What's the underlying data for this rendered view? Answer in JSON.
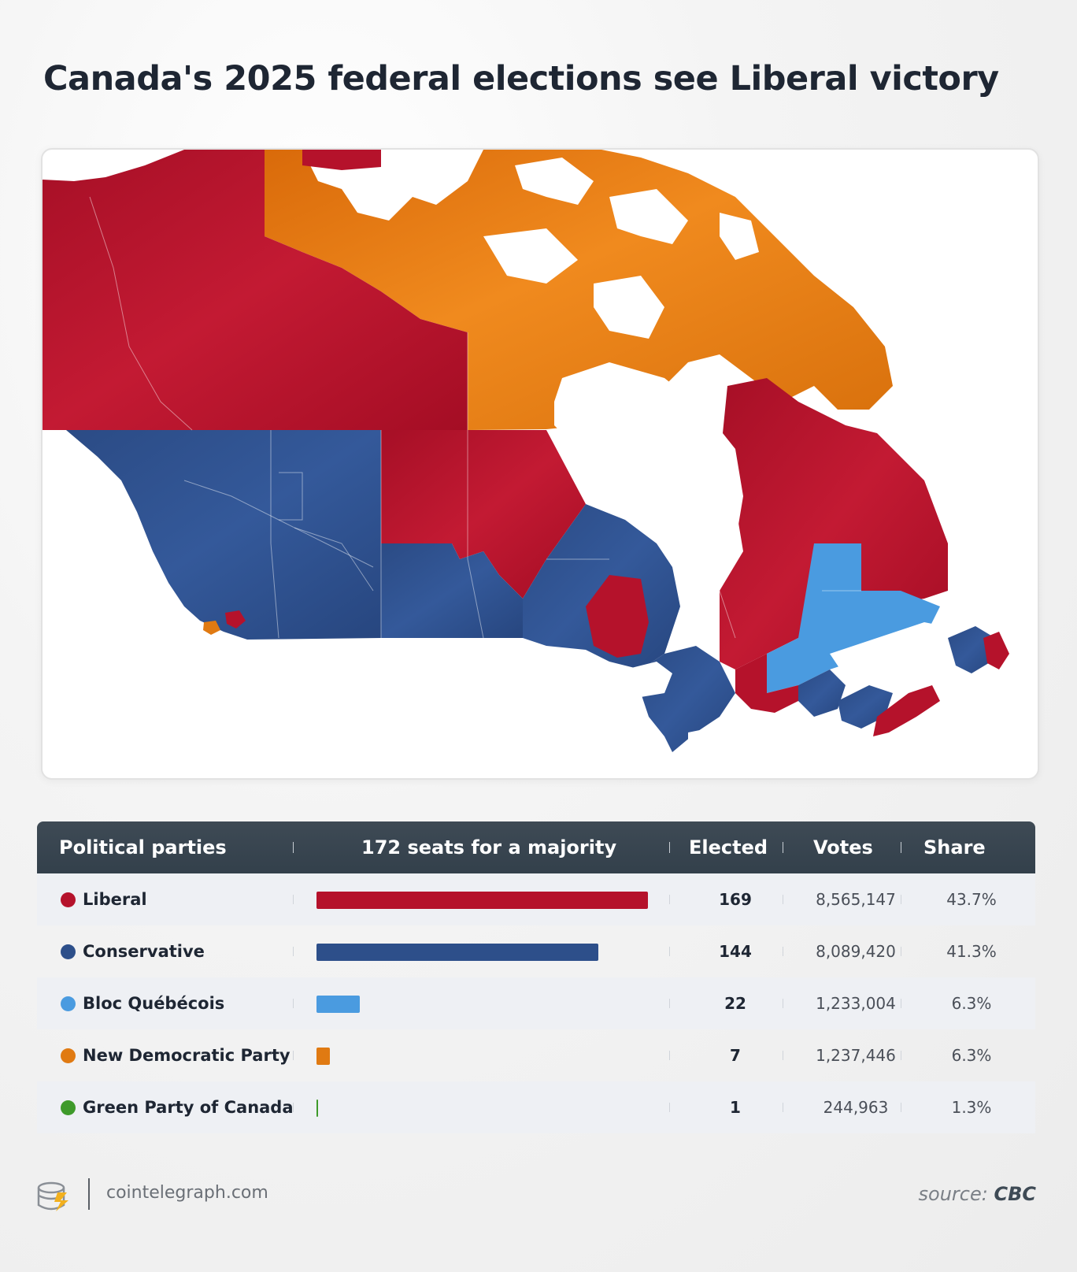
{
  "title": "Canada's 2025 federal elections see Liberal victory",
  "colors": {
    "liberal": "#b5122b",
    "conservative": "#2d4f8a",
    "bloc": "#4a9be0",
    "ndp": "#e07a12",
    "green": "#3e9a2a",
    "header": "#37434e"
  },
  "map": {
    "legend_encoding": "ridings colored by winning party",
    "regions": [
      {
        "name": "Yukon",
        "party": "Liberal"
      },
      {
        "name": "Northwest Territories",
        "party": "Liberal"
      },
      {
        "name": "Nunavut",
        "party": "New Democratic Party"
      },
      {
        "name": "British Columbia",
        "party": "Conservative"
      },
      {
        "name": "Alberta",
        "party": "Conservative"
      },
      {
        "name": "Saskatchewan",
        "party": "Conservative"
      },
      {
        "name": "Manitoba",
        "party": "Liberal"
      },
      {
        "name": "Northern Ontario",
        "party": "Liberal"
      },
      {
        "name": "Southern Ontario",
        "party": "Conservative"
      },
      {
        "name": "Northern Quebec",
        "party": "Liberal"
      },
      {
        "name": "Central Quebec",
        "party": "Bloc Québécois"
      },
      {
        "name": "Atlantic Canada",
        "party": "Liberal"
      }
    ]
  },
  "table": {
    "headers": {
      "party": "Political parties",
      "majority": "172 seats for a majority",
      "elected": "Elected",
      "votes": "Votes",
      "share": "Share"
    },
    "majority_seats": 172,
    "rows": [
      {
        "party": "Liberal",
        "elected": "169",
        "votes": "8,565,147",
        "share": "43.7%",
        "seats": 169,
        "color": "#b5122b"
      },
      {
        "party": "Conservative",
        "elected": "144",
        "votes": "8,089,420",
        "share": "41.3%",
        "seats": 144,
        "color": "#2d4f8a"
      },
      {
        "party": "Bloc Québécois",
        "elected": "22",
        "votes": "1,233,004",
        "share": "6.3%",
        "seats": 22,
        "color": "#4a9be0"
      },
      {
        "party": "New Democratic Party",
        "elected": "7",
        "votes": "1,237,446",
        "share": "6.3%",
        "seats": 7,
        "color": "#e07a12"
      },
      {
        "party": "Green Party of Canada",
        "elected": "1",
        "votes": "244,963",
        "share": "1.3%",
        "seats": 1,
        "color": "#3e9a2a"
      }
    ]
  },
  "footer": {
    "site": "cointelegraph.com",
    "source_prefix": "source:",
    "source_name": "CBC"
  }
}
